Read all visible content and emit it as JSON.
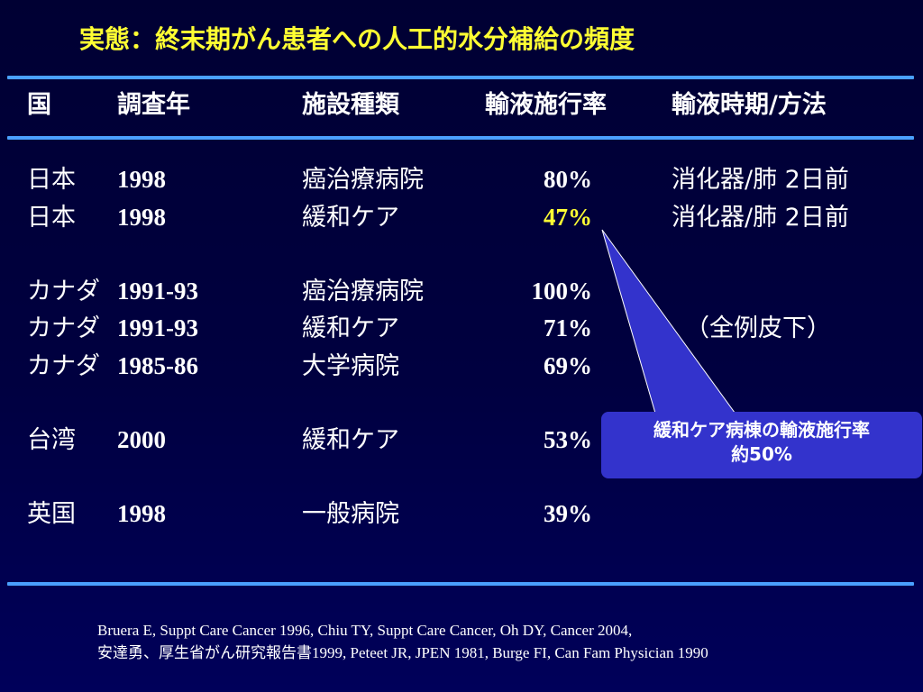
{
  "title": "実態：終末期がん患者への人工的水分補給の頻度",
  "headers": {
    "country": "国",
    "year": "調査年",
    "facility": "施設種類",
    "rate": "輸液施行率",
    "timing": "輸液時期/方法"
  },
  "rows": [
    {
      "country": "日本",
      "year": "1998",
      "facility": "癌治療病院",
      "rate": "80%",
      "timing": "消化器/肺 2日前"
    },
    {
      "country": "日本",
      "year": "1998",
      "facility": "緩和ケア",
      "rate": "47%",
      "timing": "消化器/肺  2日前"
    },
    {
      "country": "カナダ",
      "year": "1991-93",
      "facility": "癌治療病院",
      "rate": "100%",
      "timing": ""
    },
    {
      "country": "カナダ",
      "year": "1991-93",
      "facility": "緩和ケア",
      "rate": "71%",
      "timing": "（全例皮下）"
    },
    {
      "country": "カナダ",
      "year": "1985-86",
      "facility": "大学病院",
      "rate": "69%",
      "timing": ""
    },
    {
      "country": "台湾",
      "year": "2000",
      "facility": "緩和ケア",
      "rate": "53%",
      "timing": ""
    },
    {
      "country": "英国",
      "year": "1998",
      "facility": "一般病院",
      "rate": "39%",
      "timing": ""
    }
  ],
  "colors": {
    "highlight_rate": "#ffff33",
    "title": "#ffff33",
    "rule": "#4aa0ff",
    "callout_bg": "#3333cc"
  },
  "callout": {
    "line1": "緩和ケア病棟の輸液施行率",
    "line2": "約50%"
  },
  "footer": {
    "line1": "Bruera E, Suppt Care Cancer 1996, Chiu TY, Suppt Care Cancer, Oh DY, Cancer 2004,",
    "line2": "安達勇、厚生省がん研究報告書1999, Peteet JR, JPEN 1981, Burge FI, Can Fam Physician 1990"
  }
}
